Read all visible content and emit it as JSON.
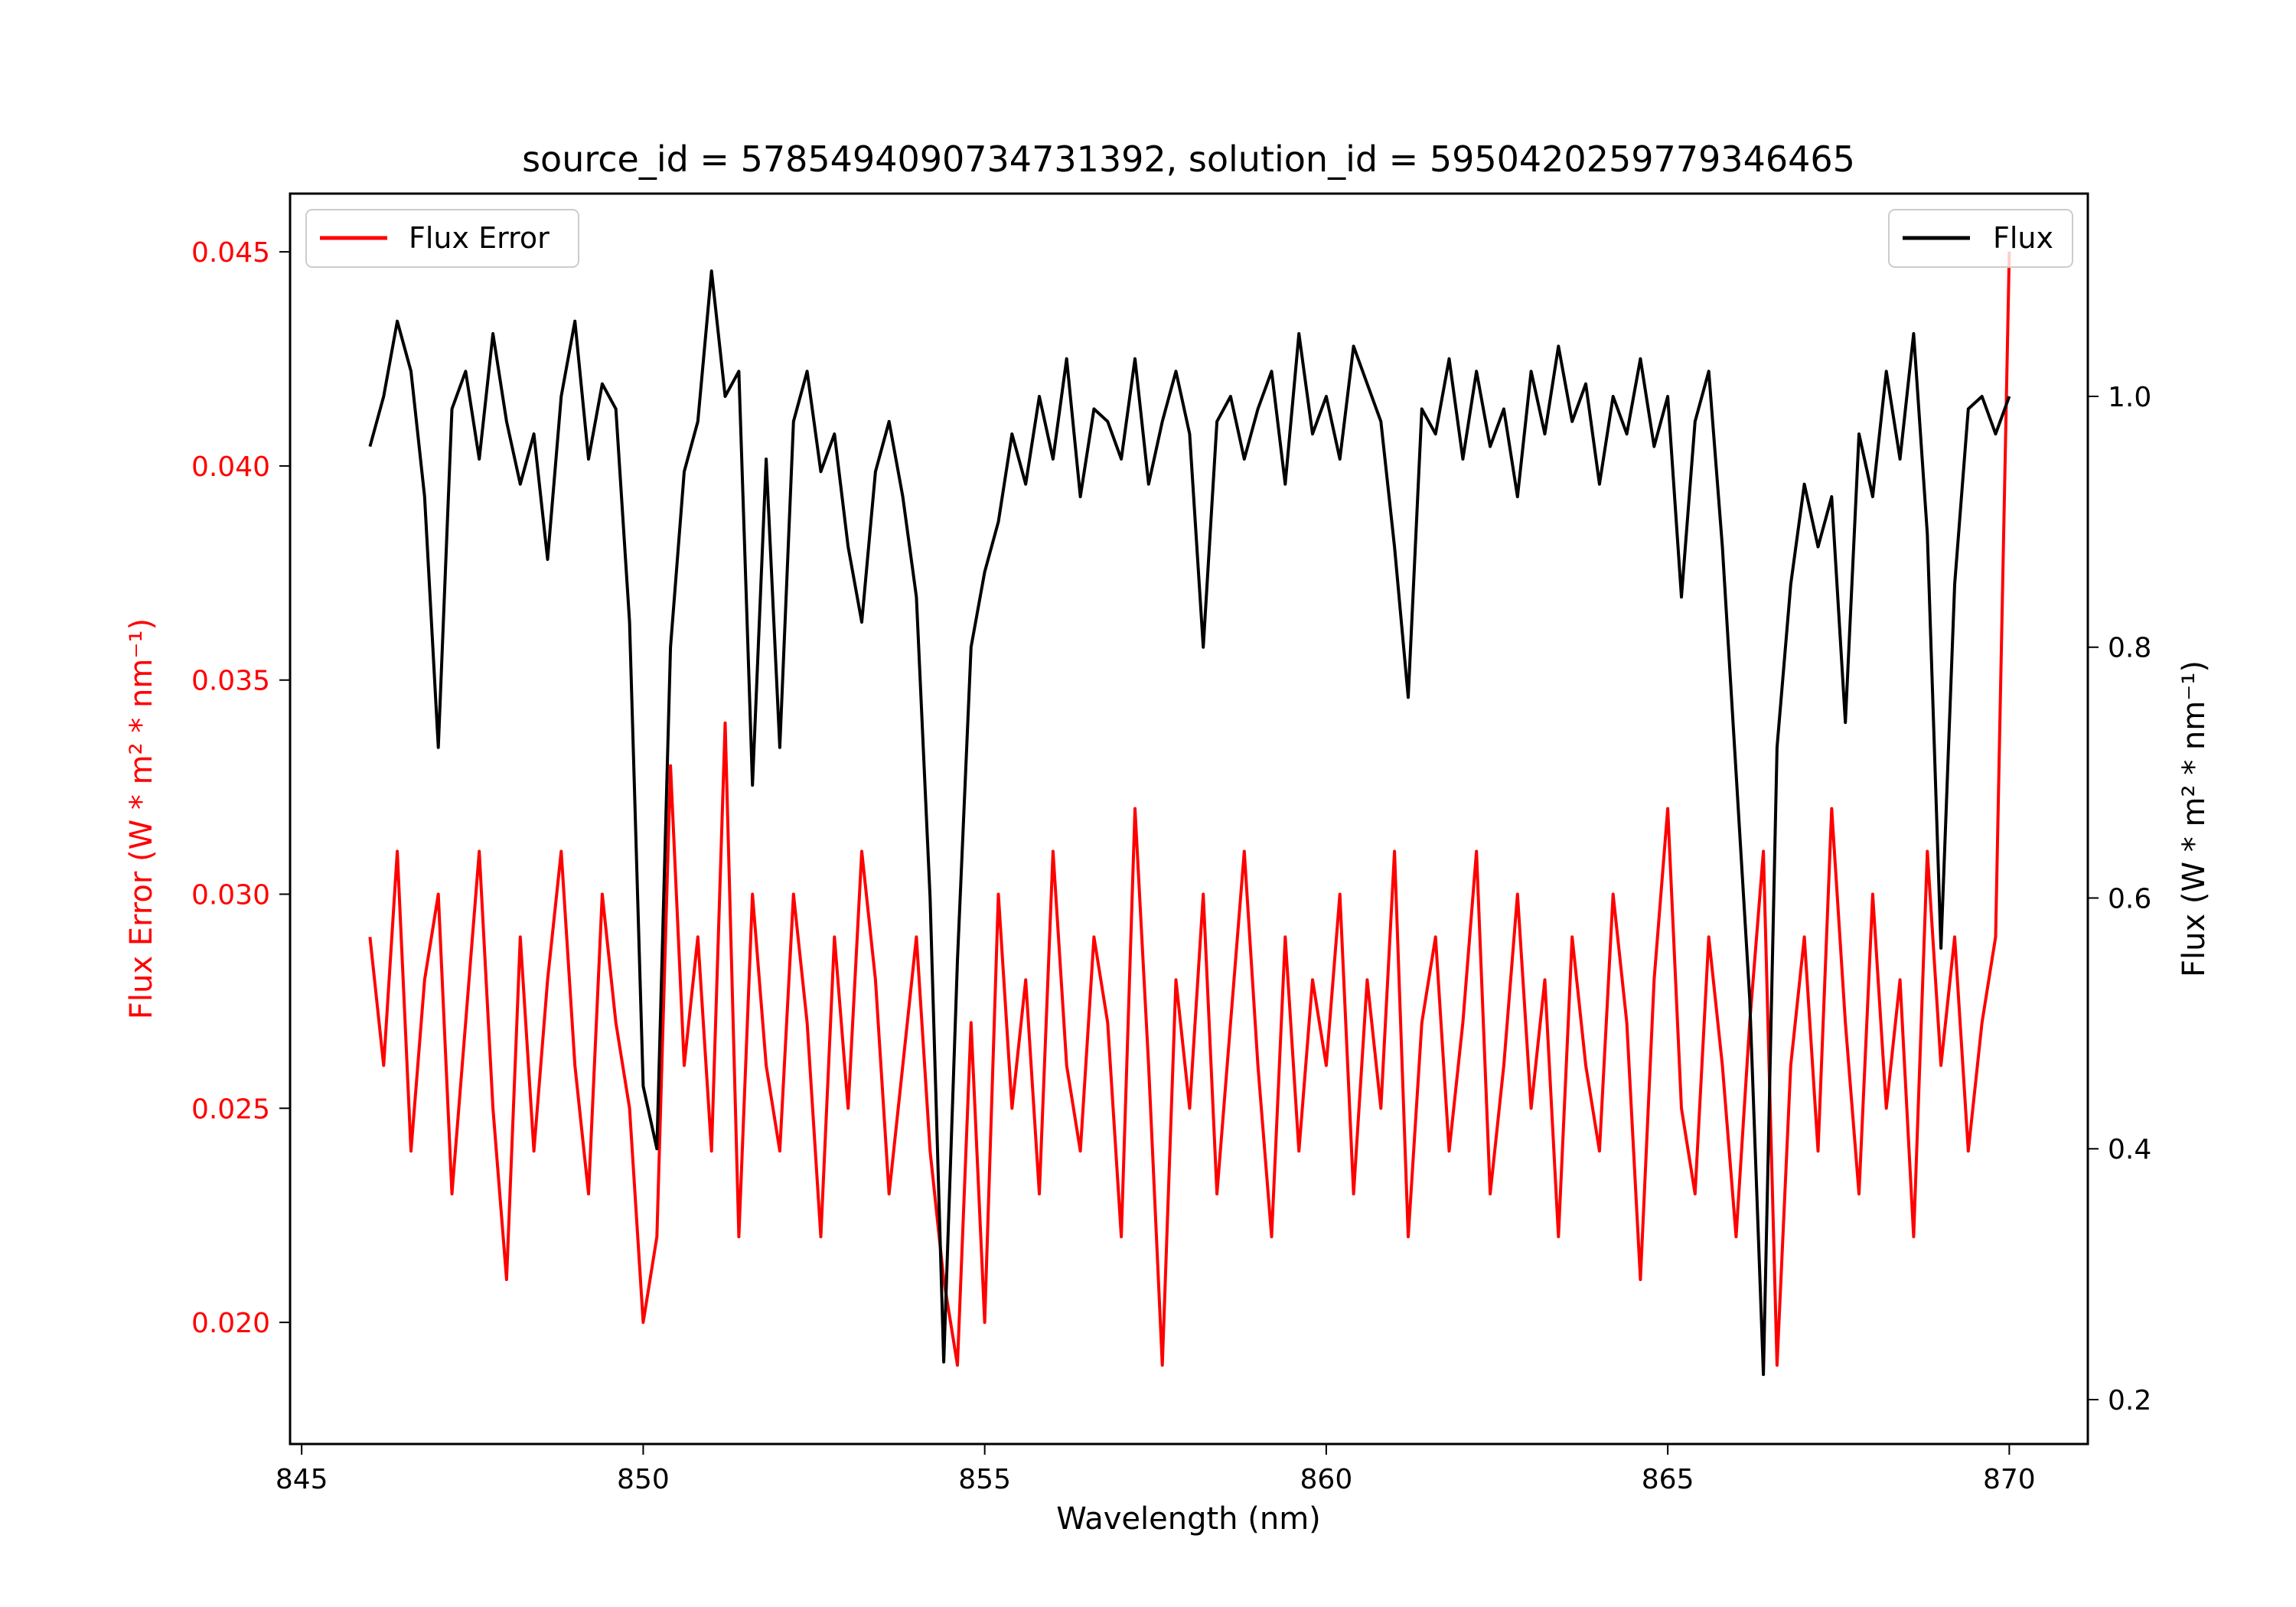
{
  "chart_data": {
    "type": "line",
    "title": "source_id = 5785494090734731392, solution_id = 5950420259779346465",
    "xlabel": "Wavelength (nm)",
    "ylabel_left": "Flux Error (W * m² * nm⁻¹)",
    "ylabel_right": "Flux (W * m² * nm⁻¹)",
    "xlim": [
      844.83,
      871.15
    ],
    "ylim_left": [
      0.01716,
      0.04636
    ],
    "ylim_right": [
      0.1646,
      1.1617
    ],
    "xticks": [
      "845",
      "850",
      "855",
      "860",
      "865",
      "870"
    ],
    "yticks_left": [
      "0.020",
      "0.025",
      "0.030",
      "0.035",
      "0.040",
      "0.045"
    ],
    "yticks_right": [
      "0.2",
      "0.4",
      "0.6",
      "0.8",
      "1.0"
    ],
    "grid": false,
    "colors": {
      "flux_error": "#ff0000",
      "flux": "#000000"
    },
    "series": [
      {
        "name": "Flux Error",
        "axis": "left",
        "legend": "top-left",
        "x_start": 846.0,
        "x_step": 0.2,
        "values": [
          0.029,
          0.026,
          0.031,
          0.024,
          0.028,
          0.03,
          0.023,
          0.027,
          0.031,
          0.025,
          0.021,
          0.029,
          0.024,
          0.028,
          0.031,
          0.026,
          0.023,
          0.03,
          0.027,
          0.025,
          0.02,
          0.022,
          0.033,
          0.026,
          0.029,
          0.024,
          0.034,
          0.022,
          0.03,
          0.026,
          0.024,
          0.03,
          0.027,
          0.022,
          0.029,
          0.025,
          0.031,
          0.028,
          0.023,
          0.026,
          0.029,
          0.024,
          0.021,
          0.019,
          0.027,
          0.02,
          0.03,
          0.025,
          0.028,
          0.023,
          0.031,
          0.026,
          0.024,
          0.029,
          0.027,
          0.022,
          0.032,
          0.026,
          0.019,
          0.028,
          0.025,
          0.03,
          0.023,
          0.027,
          0.031,
          0.026,
          0.022,
          0.029,
          0.024,
          0.028,
          0.026,
          0.03,
          0.023,
          0.028,
          0.025,
          0.031,
          0.022,
          0.027,
          0.029,
          0.024,
          0.027,
          0.031,
          0.023,
          0.026,
          0.03,
          0.025,
          0.028,
          0.022,
          0.029,
          0.026,
          0.024,
          0.03,
          0.027,
          0.021,
          0.028,
          0.032,
          0.025,
          0.023,
          0.029,
          0.026,
          0.022,
          0.027,
          0.031,
          0.019,
          0.026,
          0.029,
          0.024,
          0.032,
          0.027,
          0.023,
          0.03,
          0.025,
          0.028,
          0.022,
          0.031,
          0.026,
          0.029,
          0.024,
          0.027,
          0.029,
          0.045
        ]
      },
      {
        "name": "Flux",
        "axis": "right",
        "legend": "top-right",
        "x_start": 846.0,
        "x_step": 0.2,
        "values": [
          0.96,
          1.0,
          1.06,
          1.02,
          0.92,
          0.72,
          0.99,
          1.02,
          0.95,
          1.05,
          0.98,
          0.93,
          0.97,
          0.87,
          1.0,
          1.06,
          0.95,
          1.01,
          0.99,
          0.82,
          0.45,
          0.4,
          0.8,
          0.94,
          0.98,
          1.1,
          1.0,
          1.02,
          0.69,
          0.95,
          0.72,
          0.98,
          1.02,
          0.94,
          0.97,
          0.88,
          0.82,
          0.94,
          0.98,
          0.92,
          0.84,
          0.6,
          0.23,
          0.55,
          0.8,
          0.86,
          0.9,
          0.97,
          0.93,
          1.0,
          0.95,
          1.03,
          0.92,
          0.99,
          0.98,
          0.95,
          1.03,
          0.93,
          0.98,
          1.02,
          0.97,
          0.8,
          0.98,
          1.0,
          0.95,
          0.99,
          1.02,
          0.93,
          1.05,
          0.97,
          1.0,
          0.95,
          1.04,
          1.01,
          0.98,
          0.88,
          0.76,
          0.99,
          0.97,
          1.03,
          0.95,
          1.02,
          0.96,
          0.99,
          0.92,
          1.02,
          0.97,
          1.04,
          0.98,
          1.01,
          0.93,
          1.0,
          0.97,
          1.03,
          0.96,
          1.0,
          0.84,
          0.98,
          1.02,
          0.88,
          0.7,
          0.52,
          0.22,
          0.72,
          0.85,
          0.93,
          0.88,
          0.92,
          0.74,
          0.97,
          0.92,
          1.02,
          0.95,
          1.05,
          0.89,
          0.56,
          0.85,
          0.99,
          1.0,
          0.97,
          1.0
        ]
      }
    ]
  }
}
